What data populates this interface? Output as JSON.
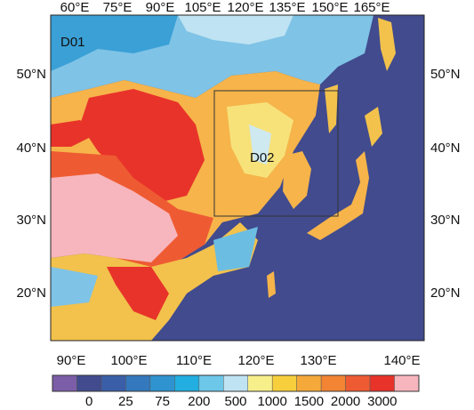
{
  "map": {
    "top_labels": [
      "60°E",
      "75°E",
      "90°E",
      "105°E",
      "120°E",
      "135°E",
      "150°E",
      "165°E"
    ],
    "bottom_labels": [
      "90°E",
      "100°E",
      "110°E",
      "120°E",
      "130°E",
      "140°E"
    ],
    "left_labels": [
      "50°N",
      "40°N",
      "30°N",
      "20°N"
    ],
    "right_labels": [
      "50°N",
      "40°N",
      "30°N",
      "20°N"
    ],
    "domains": [
      "D01",
      "D02"
    ]
  },
  "colorbar": {
    "labels": [
      "0",
      "25",
      "75",
      "200",
      "500",
      "1000",
      "1500",
      "2000",
      "3000"
    ]
  }
}
